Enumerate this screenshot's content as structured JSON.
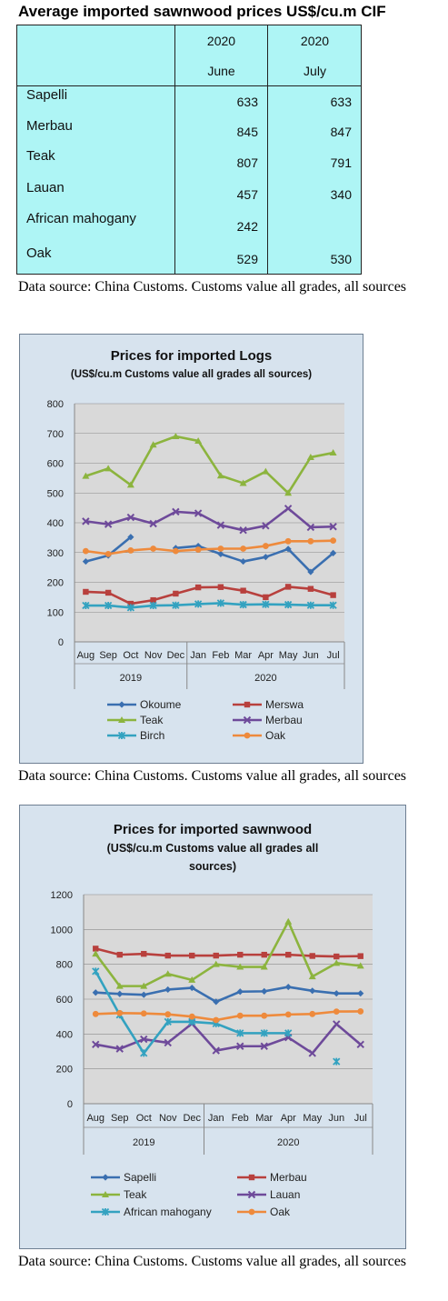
{
  "table": {
    "title": "Average imported sawnwood prices US$/cu.m CIF",
    "col_years": [
      "2020",
      "2020"
    ],
    "col_months": [
      "June",
      "July"
    ],
    "rows": [
      {
        "name": "Sapelli",
        "june": "633",
        "july": "633"
      },
      {
        "name": "Merbau",
        "june": "845",
        "july": "847"
      },
      {
        "name": "Teak",
        "june": "807",
        "july": "791"
      },
      {
        "name": "Lauan",
        "june": "457",
        "july": "340"
      },
      {
        "name": "African mahogany",
        "june": "242",
        "july": ""
      },
      {
        "name": "Oak",
        "june": "529",
        "july": "530"
      }
    ]
  },
  "sources": {
    "text": "Data source: China Customs. Customs value all grades, all sources"
  },
  "chart_data": [
    {
      "type": "line",
      "title": "Prices for imported Logs",
      "subtitle": "(US$/cu.m Customs value all grades all sources)",
      "categories": [
        "Aug",
        "Sep",
        "Oct",
        "Nov",
        "Dec",
        "Jan",
        "Feb",
        "Mar",
        "Apr",
        "May",
        "Jun",
        "Jul"
      ],
      "year_groups": [
        {
          "label": "2019",
          "count": 5
        },
        {
          "label": "2020",
          "count": 7
        }
      ],
      "ylim": [
        0,
        800
      ],
      "yticks": [
        0,
        100,
        200,
        300,
        400,
        500,
        600,
        700,
        800
      ],
      "legend": "bottom",
      "series": [
        {
          "name": "Okoume",
          "color": "#3a6fb0",
          "marker": "diamond",
          "values": [
            270,
            290,
            352,
            null,
            315,
            322,
            295,
            270,
            285,
            312,
            235,
            298
          ]
        },
        {
          "name": "Merswa",
          "color": "#b8403d",
          "marker": "square",
          "values": [
            168,
            165,
            128,
            140,
            162,
            183,
            184,
            172,
            150,
            185,
            178,
            157
          ]
        },
        {
          "name": "Teak",
          "color": "#8cb43e",
          "marker": "triangle",
          "values": [
            557,
            582,
            527,
            662,
            690,
            675,
            558,
            533,
            572,
            500,
            620,
            635
          ]
        },
        {
          "name": "Merbau",
          "color": "#6e4a9a",
          "marker": "x",
          "values": [
            405,
            395,
            418,
            397,
            437,
            432,
            392,
            375,
            390,
            448,
            385,
            387
          ]
        },
        {
          "name": "Birch",
          "color": "#33a2c0",
          "marker": "star",
          "values": [
            122,
            122,
            115,
            122,
            123,
            127,
            130,
            125,
            126,
            125,
            123,
            123
          ]
        },
        {
          "name": "Oak",
          "color": "#ee8a3c",
          "marker": "circle",
          "values": [
            305,
            295,
            307,
            313,
            305,
            310,
            313,
            313,
            322,
            338,
            338,
            340
          ]
        }
      ]
    },
    {
      "type": "line",
      "title": "Prices for imported sawnwood",
      "subtitle": "(US$/cu.m Customs value all grades all sources)",
      "categories": [
        "Aug",
        "Sep",
        "Oct",
        "Nov",
        "Dec",
        "Jan",
        "Feb",
        "Mar",
        "Apr",
        "May",
        "Jun",
        "Jul"
      ],
      "year_groups": [
        {
          "label": "2019",
          "count": 5
        },
        {
          "label": "2020",
          "count": 7
        }
      ],
      "ylim": [
        0,
        1200
      ],
      "yticks": [
        0,
        200,
        400,
        600,
        800,
        1000,
        1200
      ],
      "legend": "bottom",
      "series": [
        {
          "name": "Sapelli",
          "color": "#3a6fb0",
          "marker": "diamond",
          "values": [
            638,
            630,
            625,
            655,
            665,
            585,
            643,
            645,
            670,
            648,
            633,
            633
          ]
        },
        {
          "name": "Merbau",
          "color": "#b8403d",
          "marker": "square",
          "values": [
            890,
            855,
            860,
            850,
            850,
            850,
            855,
            855,
            855,
            848,
            845,
            847
          ]
        },
        {
          "name": "Teak",
          "color": "#8cb43e",
          "marker": "triangle",
          "values": [
            860,
            675,
            675,
            745,
            710,
            800,
            785,
            785,
            1045,
            730,
            807,
            791
          ]
        },
        {
          "name": "Lauan",
          "color": "#6e4a9a",
          "marker": "x",
          "values": [
            340,
            315,
            370,
            350,
            460,
            305,
            330,
            330,
            380,
            290,
            457,
            340
          ]
        },
        {
          "name": "African mahogany",
          "color": "#33a2c0",
          "marker": "star",
          "values": [
            760,
            510,
            290,
            470,
            470,
            460,
            405,
            405,
            405,
            null,
            242,
            null
          ]
        },
        {
          "name": "Oak",
          "color": "#ee8a3c",
          "marker": "circle",
          "values": [
            515,
            520,
            518,
            513,
            500,
            480,
            505,
            505,
            512,
            515,
            529,
            530
          ]
        }
      ]
    }
  ]
}
